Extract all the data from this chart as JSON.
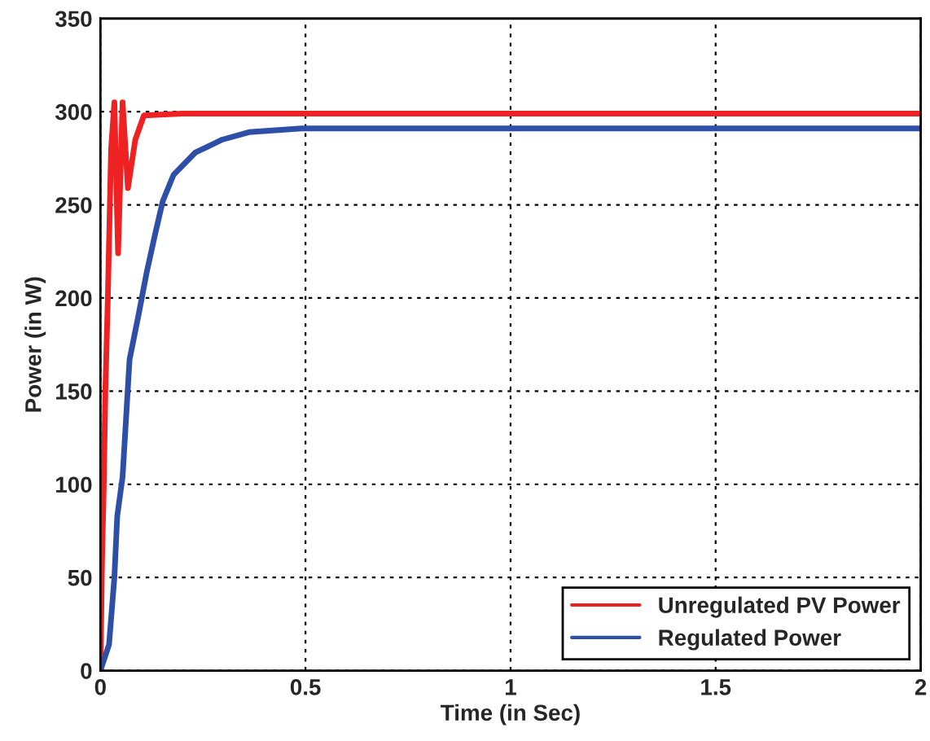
{
  "chart_data": {
    "type": "line",
    "xlabel": "Time (in Sec)",
    "ylabel": "Power (in W)",
    "xlim": [
      0,
      2
    ],
    "ylim": [
      0,
      350
    ],
    "xticks": [
      0,
      0.5,
      1,
      1.5,
      2
    ],
    "yticks": [
      0,
      50,
      100,
      150,
      200,
      250,
      300,
      350
    ],
    "grid": true,
    "legend": "bottom right",
    "line_style": "solid",
    "series": [
      {
        "name": "Unregulated PV Power",
        "color": "#ee2222",
        "x": [
          0,
          0.004,
          0.008,
          0.012,
          0.018,
          0.026,
          0.034,
          0.043,
          0.054,
          0.067,
          0.085,
          0.106,
          0.2,
          0.5,
          1,
          1.5,
          2
        ],
        "values": [
          0,
          60,
          98,
          150,
          200,
          280,
          305,
          224,
          305,
          259,
          285,
          298,
          299,
          299,
          299,
          299,
          299
        ]
      },
      {
        "name": "Regulated Power",
        "color": "#2e4fa8",
        "x": [
          0,
          0.021,
          0.034,
          0.041,
          0.054,
          0.071,
          0.093,
          0.113,
          0.133,
          0.152,
          0.178,
          0.231,
          0.297,
          0.362,
          0.49,
          1,
          1.5,
          2
        ],
        "values": [
          0,
          14,
          50,
          83,
          104,
          167,
          191,
          214,
          234,
          252,
          266,
          278,
          285,
          289,
          291,
          291,
          291,
          291
        ]
      }
    ]
  }
}
